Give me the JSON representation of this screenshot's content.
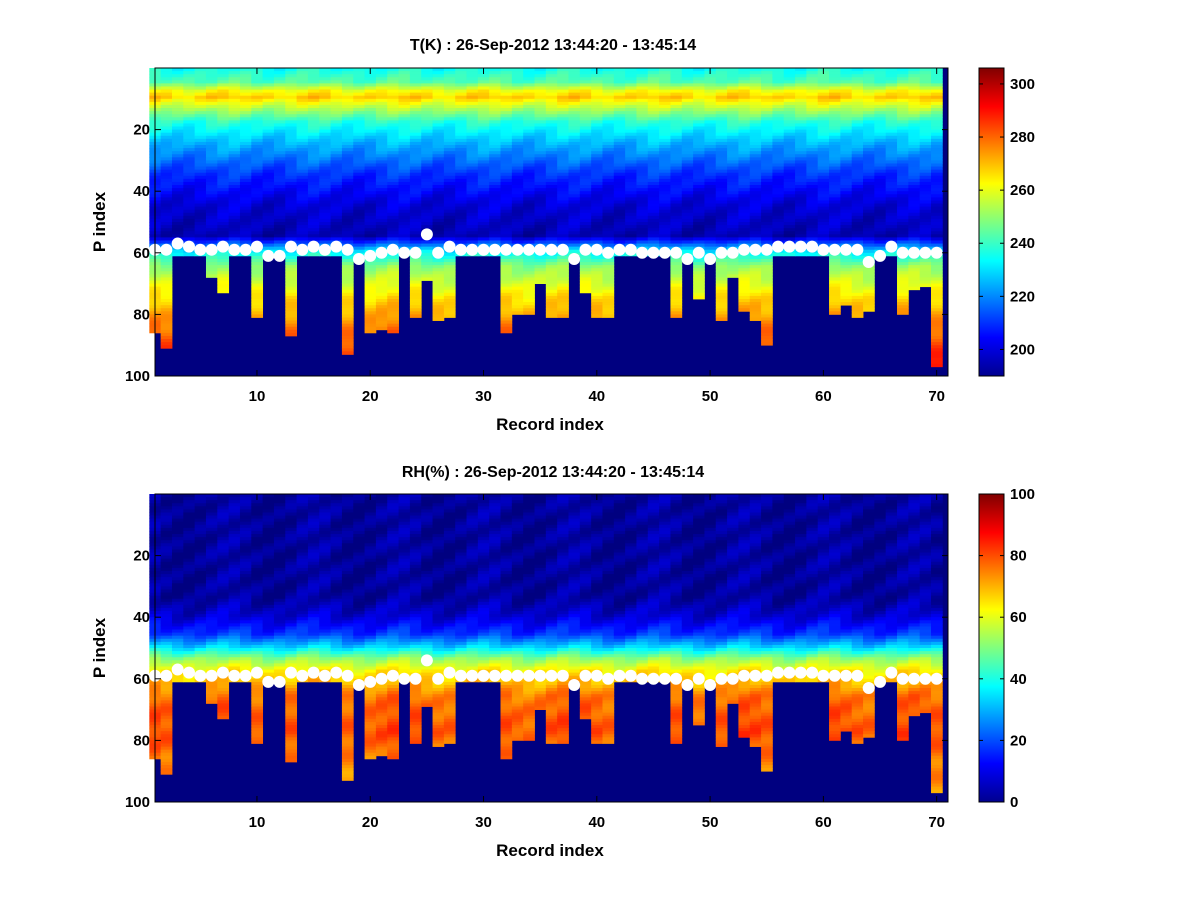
{
  "chart_data": [
    {
      "type": "heatmap",
      "title": "T(K) : 26-Sep-2012 13:44:20 - 13:45:14",
      "xlabel": "Record index",
      "ylabel": "P index",
      "xlim": [
        1,
        71
      ],
      "ylim": [
        0,
        100
      ],
      "y_reversed": true,
      "xticks": [
        10,
        20,
        30,
        40,
        50,
        60,
        70
      ],
      "yticks": [
        20,
        40,
        60,
        80,
        100
      ],
      "colormap": "jet",
      "colorbar": {
        "min": 190,
        "max": 306,
        "ticks": [
          200,
          220,
          240,
          260,
          280,
          300
        ]
      },
      "cell_bottom_index": [
        86,
        91,
        61,
        61,
        61,
        68,
        73,
        61,
        61,
        81,
        61,
        61,
        87,
        61,
        61,
        61,
        61,
        93,
        61,
        86,
        85,
        86,
        61,
        81,
        69,
        82,
        81,
        61,
        61,
        61,
        61,
        86,
        80,
        80,
        70,
        81,
        81,
        61,
        73,
        81,
        81,
        61,
        61,
        61,
        61,
        61,
        81,
        61,
        75,
        61,
        82,
        68,
        79,
        82,
        90,
        61,
        61,
        61,
        61,
        61,
        80,
        77,
        81,
        79,
        61,
        61,
        80,
        72,
        71,
        97
      ],
      "marker_p_index": [
        59,
        59,
        57,
        58,
        59,
        59,
        58,
        59,
        59,
        58,
        61,
        61,
        58,
        59,
        58,
        59,
        58,
        59,
        62,
        61,
        60,
        59,
        60,
        60,
        54,
        60,
        58,
        59,
        59,
        59,
        59,
        59,
        59,
        59,
        59,
        59,
        59,
        62,
        59,
        59,
        60,
        59,
        59,
        60,
        60,
        60,
        60,
        62,
        60,
        62,
        60,
        60,
        59,
        59,
        59,
        58,
        58,
        58,
        58,
        59,
        59,
        59,
        59,
        63,
        61,
        58,
        60,
        60,
        60,
        60
      ],
      "profile": {
        "p_index": [
          1,
          5,
          8,
          10,
          12,
          18,
          25,
          35,
          45,
          55,
          60,
          65,
          75,
          85,
          95,
          100
        ],
        "value": [
          236,
          243,
          262,
          268,
          260,
          238,
          225,
          210,
          200,
          196,
          232,
          250,
          266,
          278,
          288,
          298
        ]
      }
    },
    {
      "type": "heatmap",
      "title": "RH(%) : 26-Sep-2012 13:44:20 - 13:45:14",
      "xlabel": "Record index",
      "ylabel": "P index",
      "xlim": [
        1,
        71
      ],
      "ylim": [
        0,
        100
      ],
      "y_reversed": true,
      "xticks": [
        10,
        20,
        30,
        40,
        50,
        60,
        70
      ],
      "yticks": [
        20,
        40,
        60,
        80,
        100
      ],
      "colormap": "jet",
      "colorbar": {
        "min": 0,
        "max": 100,
        "ticks": [
          0,
          20,
          40,
          60,
          80,
          100
        ]
      },
      "cell_bottom_index": [
        86,
        91,
        61,
        61,
        61,
        68,
        73,
        61,
        61,
        81,
        61,
        61,
        87,
        61,
        61,
        61,
        61,
        93,
        61,
        86,
        85,
        86,
        61,
        81,
        69,
        82,
        81,
        61,
        61,
        61,
        61,
        86,
        80,
        80,
        70,
        81,
        81,
        61,
        73,
        81,
        81,
        61,
        61,
        61,
        61,
        61,
        81,
        61,
        75,
        61,
        82,
        68,
        79,
        82,
        90,
        61,
        61,
        61,
        61,
        61,
        80,
        77,
        81,
        79,
        61,
        61,
        80,
        72,
        71,
        97
      ],
      "marker_p_index": [
        59,
        59,
        57,
        58,
        59,
        59,
        58,
        59,
        59,
        58,
        61,
        61,
        58,
        59,
        58,
        59,
        58,
        59,
        62,
        61,
        60,
        59,
        60,
        60,
        54,
        60,
        58,
        59,
        59,
        59,
        59,
        59,
        59,
        59,
        59,
        59,
        59,
        62,
        59,
        59,
        60,
        59,
        59,
        60,
        60,
        60,
        60,
        62,
        60,
        62,
        60,
        60,
        59,
        59,
        59,
        58,
        58,
        58,
        58,
        59,
        59,
        59,
        59,
        63,
        61,
        58,
        60,
        60,
        60,
        60
      ],
      "profile": {
        "p_index": [
          1,
          34,
          40,
          46,
          50,
          54,
          58,
          62,
          66,
          70,
          78,
          86,
          92,
          100
        ],
        "value": [
          3,
          3,
          8,
          18,
          33,
          52,
          64,
          70,
          76,
          78,
          80,
          76,
          74,
          72
        ]
      }
    }
  ]
}
